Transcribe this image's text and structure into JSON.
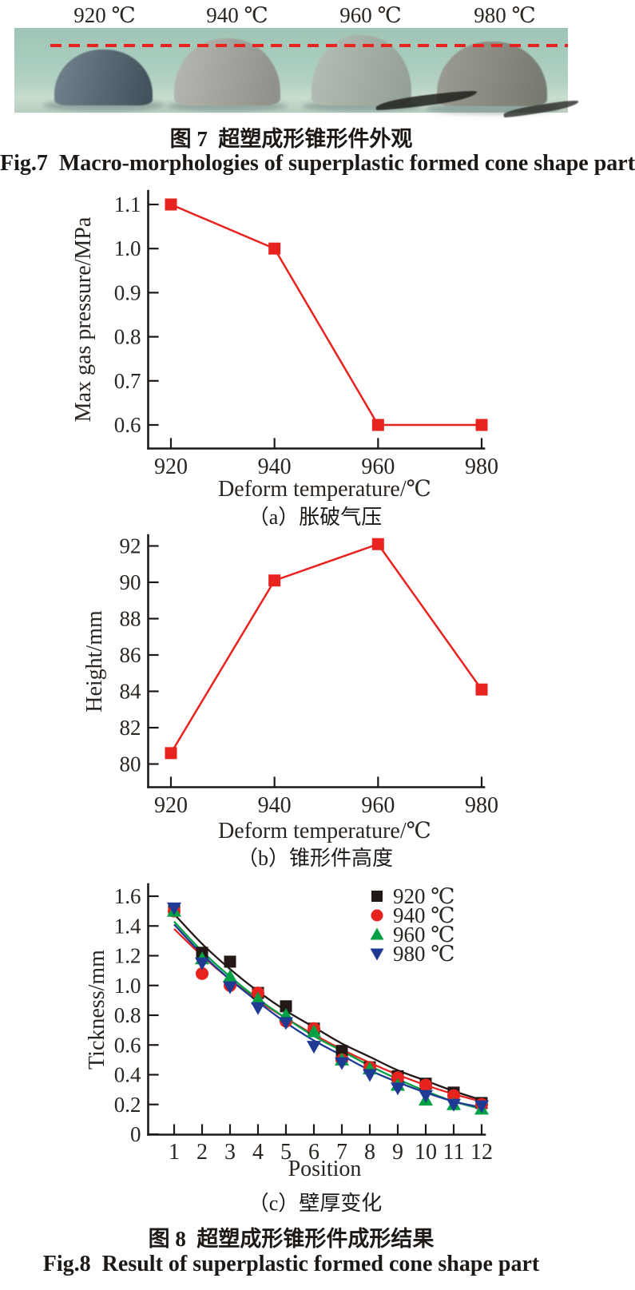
{
  "figure7": {
    "temp_labels": [
      "920 ℃",
      "940 ℃",
      "960 ℃",
      "980 ℃"
    ],
    "caption_zh": "图 7  超塑成形锥形件外观",
    "caption_en": "Fig.7  Macro-morphologies of superplastic formed cone shape part",
    "photo": {
      "background_top": "#9fc4b5",
      "background_bottom": "#c9ddce",
      "dash_color": "#e8231f",
      "cones": [
        {
          "label": "920 ℃",
          "color_light": "#70808a",
          "color_dark": "#43525c"
        },
        {
          "label": "940 ℃",
          "color_light": "#b3b6ae",
          "color_dark": "#8f928a"
        },
        {
          "label": "960 ℃",
          "color_light": "#b2bcb2",
          "color_dark": "#95a096"
        },
        {
          "label": "980 ℃",
          "color_light": "#9a9b90",
          "color_dark": "#787a70"
        }
      ]
    }
  },
  "figure8": {
    "caption_zh": "图 8  超塑成形锥形件成形结果",
    "caption_en": "Fig.8  Result of superplastic formed cone shape part",
    "sub_captions": {
      "a": "（a）胀破气压",
      "b": "（b）锥形件高度",
      "c": "（c）壁厚变化"
    }
  },
  "chart_data": [
    {
      "id": "a",
      "type": "line",
      "x": [
        920,
        940,
        960,
        980
      ],
      "values": [
        1.1,
        1.0,
        0.6,
        0.6
      ],
      "xlabel": "Deform temperature/℃",
      "ylabel": "Max gas pressure/MPa",
      "xtick_labels": [
        "920",
        "940",
        "960",
        "980"
      ],
      "ytick_values": [
        0.6,
        0.7,
        0.8,
        0.9,
        1.0,
        1.1
      ],
      "ytick_labels": [
        "0.6",
        "0.7",
        "0.8",
        "0.9",
        "1.0",
        "1.1"
      ],
      "ylim": [
        0.55,
        1.13
      ],
      "xlim": [
        915,
        981
      ],
      "grid": false,
      "color": "#e8231f",
      "marker": "square"
    },
    {
      "id": "b",
      "type": "line",
      "x": [
        920,
        940,
        960,
        980
      ],
      "values": [
        80.6,
        90.1,
        92.1,
        84.1
      ],
      "xlabel": "Deform temperature/℃",
      "ylabel": "Height/mm",
      "xtick_labels": [
        "920",
        "940",
        "960",
        "980"
      ],
      "ytick_values": [
        80,
        82,
        84,
        86,
        88,
        90,
        92
      ],
      "ytick_labels": [
        "80",
        "82",
        "84",
        "86",
        "88",
        "90",
        "92"
      ],
      "ylim": [
        78.7,
        92.6
      ],
      "xlim": [
        915,
        981
      ],
      "grid": false,
      "color": "#e8231f",
      "marker": "square"
    },
    {
      "id": "c",
      "type": "scatter-fit",
      "x": [
        1,
        2,
        3,
        4,
        5,
        6,
        7,
        8,
        9,
        10,
        11,
        12
      ],
      "xlabel": "Position",
      "ylabel": "Tickness/mm",
      "xtick_labels": [
        "1",
        "2",
        "3",
        "4",
        "5",
        "6",
        "7",
        "8",
        "9",
        "10",
        "11",
        "12"
      ],
      "ytick_values": [
        0,
        0.2,
        0.4,
        0.6,
        0.8,
        1.0,
        1.2,
        1.4,
        1.6
      ],
      "ytick_labels": [
        "0",
        "0.2",
        "0.4",
        "0.6",
        "0.8",
        "1.0",
        "1.2",
        "1.4",
        "1.6"
      ],
      "ylim": [
        0,
        1.68
      ],
      "grid": false,
      "legend_position": "top-right",
      "series": [
        {
          "name": "920 ℃",
          "color": "#231815",
          "marker": "square",
          "values": [
            1.51,
            1.22,
            1.16,
            0.95,
            0.86,
            0.71,
            0.56,
            0.45,
            0.39,
            0.34,
            0.28,
            0.21
          ],
          "fit": [
            1.48,
            1.28,
            1.11,
            0.96,
            0.83,
            0.72,
            0.61,
            0.52,
            0.43,
            0.36,
            0.29,
            0.23
          ]
        },
        {
          "name": "940 ℃",
          "color": "#e8231f",
          "marker": "circle",
          "values": [
            1.5,
            1.08,
            1.0,
            0.95,
            0.76,
            0.71,
            0.5,
            0.45,
            0.38,
            0.33,
            0.26,
            0.2
          ],
          "fit": [
            1.38,
            1.2,
            1.04,
            0.9,
            0.78,
            0.67,
            0.57,
            0.48,
            0.4,
            0.33,
            0.27,
            0.22
          ]
        },
        {
          "name": "960 ℃",
          "color": "#00a045",
          "marker": "triangle-up",
          "values": [
            1.5,
            1.18,
            1.06,
            0.91,
            0.8,
            0.69,
            0.5,
            0.44,
            0.33,
            0.23,
            0.2,
            0.17
          ],
          "fit": [
            1.43,
            1.23,
            1.06,
            0.91,
            0.78,
            0.66,
            0.56,
            0.46,
            0.37,
            0.29,
            0.22,
            0.17
          ]
        },
        {
          "name": "980 ℃",
          "color": "#1f3a93",
          "marker": "triangle-down",
          "values": [
            1.52,
            1.15,
            0.99,
            0.85,
            0.75,
            0.59,
            0.48,
            0.4,
            0.31,
            0.26,
            0.2,
            0.19
          ],
          "fit": [
            1.41,
            1.21,
            1.04,
            0.89,
            0.75,
            0.63,
            0.53,
            0.43,
            0.35,
            0.28,
            0.22,
            0.18
          ]
        }
      ]
    }
  ]
}
